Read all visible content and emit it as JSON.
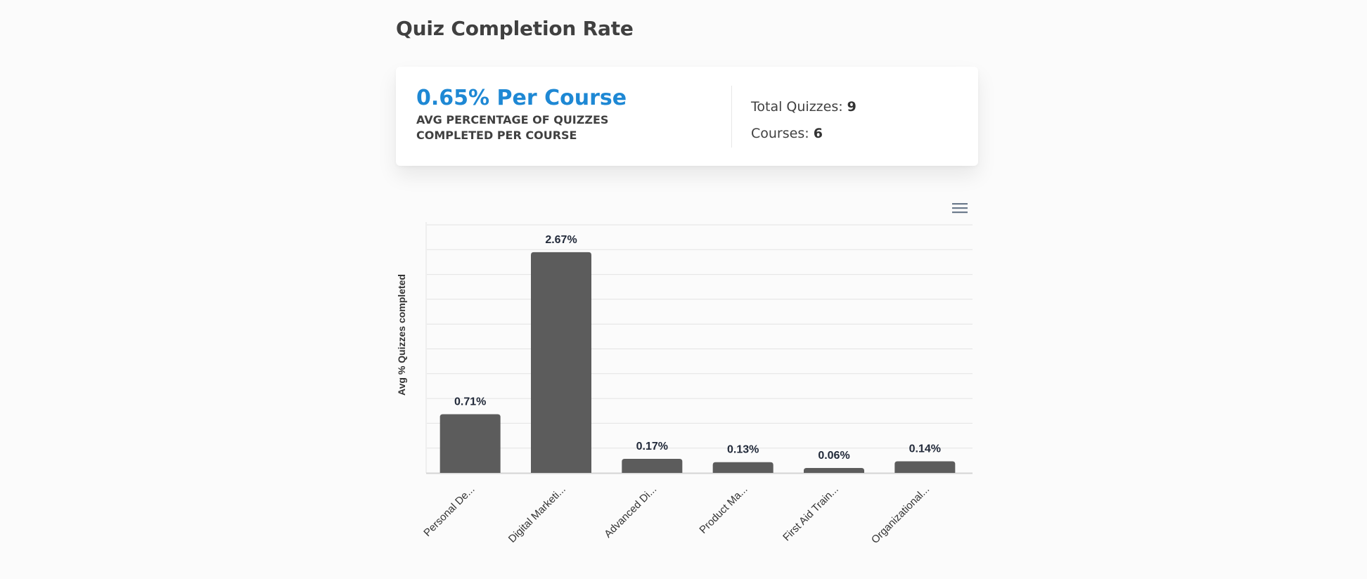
{
  "page": {
    "title": "Quiz Completion Rate"
  },
  "summary": {
    "headline": "0.65% Per Course",
    "caption": "AVG PERCENTAGE OF QUIZZES COMPLETED PER COURSE",
    "total_quizzes_label": "Total Quizzes:",
    "total_quizzes_value": "9",
    "courses_label": "Courses:",
    "courses_value": "6",
    "accent_color": "#1e88d4"
  },
  "chart_menu": {
    "icon": "hamburger-menu-icon"
  },
  "chart_data": {
    "type": "bar",
    "title": "",
    "xlabel": "",
    "ylabel": "Avg % Quizzes completed",
    "categories": [
      "Personal De...",
      "Digital Marketi...",
      "Advanced Di...",
      "Product Ma...",
      "First Aid Train...",
      "Organizational..."
    ],
    "values": [
      0.71,
      2.67,
      0.17,
      0.13,
      0.06,
      0.14
    ],
    "data_labels": [
      "0.71%",
      "2.67%",
      "0.17%",
      "0.13%",
      "0.06%",
      "0.14%"
    ],
    "ylim": [
      0,
      3
    ],
    "gridlines": 10,
    "grid": true,
    "legend": "none",
    "bar_color": "#5c5c5c"
  }
}
